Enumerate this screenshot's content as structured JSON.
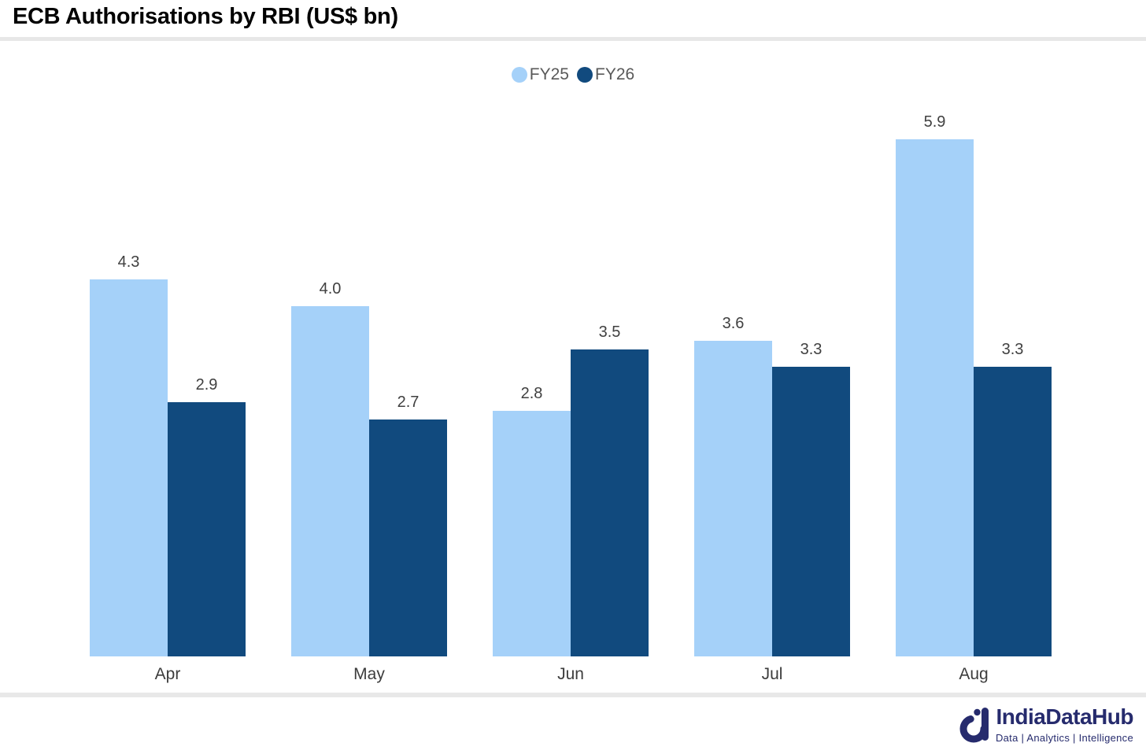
{
  "header": {
    "title": "ECB Authorisations by RBI (US$ bn)"
  },
  "chart_data": {
    "type": "bar",
    "title": "ECB Authorisations by RBI (US$ bn)",
    "categories": [
      "Apr",
      "May",
      "Jun",
      "Jul",
      "Aug"
    ],
    "series": [
      {
        "name": "FY25",
        "color": "#A5D1F9",
        "values": [
          4.3,
          4.0,
          2.8,
          3.6,
          5.9
        ]
      },
      {
        "name": "FY26",
        "color": "#114A7E",
        "values": [
          2.9,
          2.7,
          3.5,
          3.3,
          3.3
        ]
      }
    ],
    "ylim": [
      0,
      6.5
    ],
    "value_labels": true,
    "value_label_color": "#404040",
    "axis_label_color": "#3d3d3d",
    "legend_position": "top-center",
    "gridlines": false,
    "y_axis_visible": false
  },
  "branding": {
    "logo_name": "IndiaDataHub",
    "tagline": "Data | Analytics | Intelligence",
    "logo_color": "#262b6d"
  }
}
